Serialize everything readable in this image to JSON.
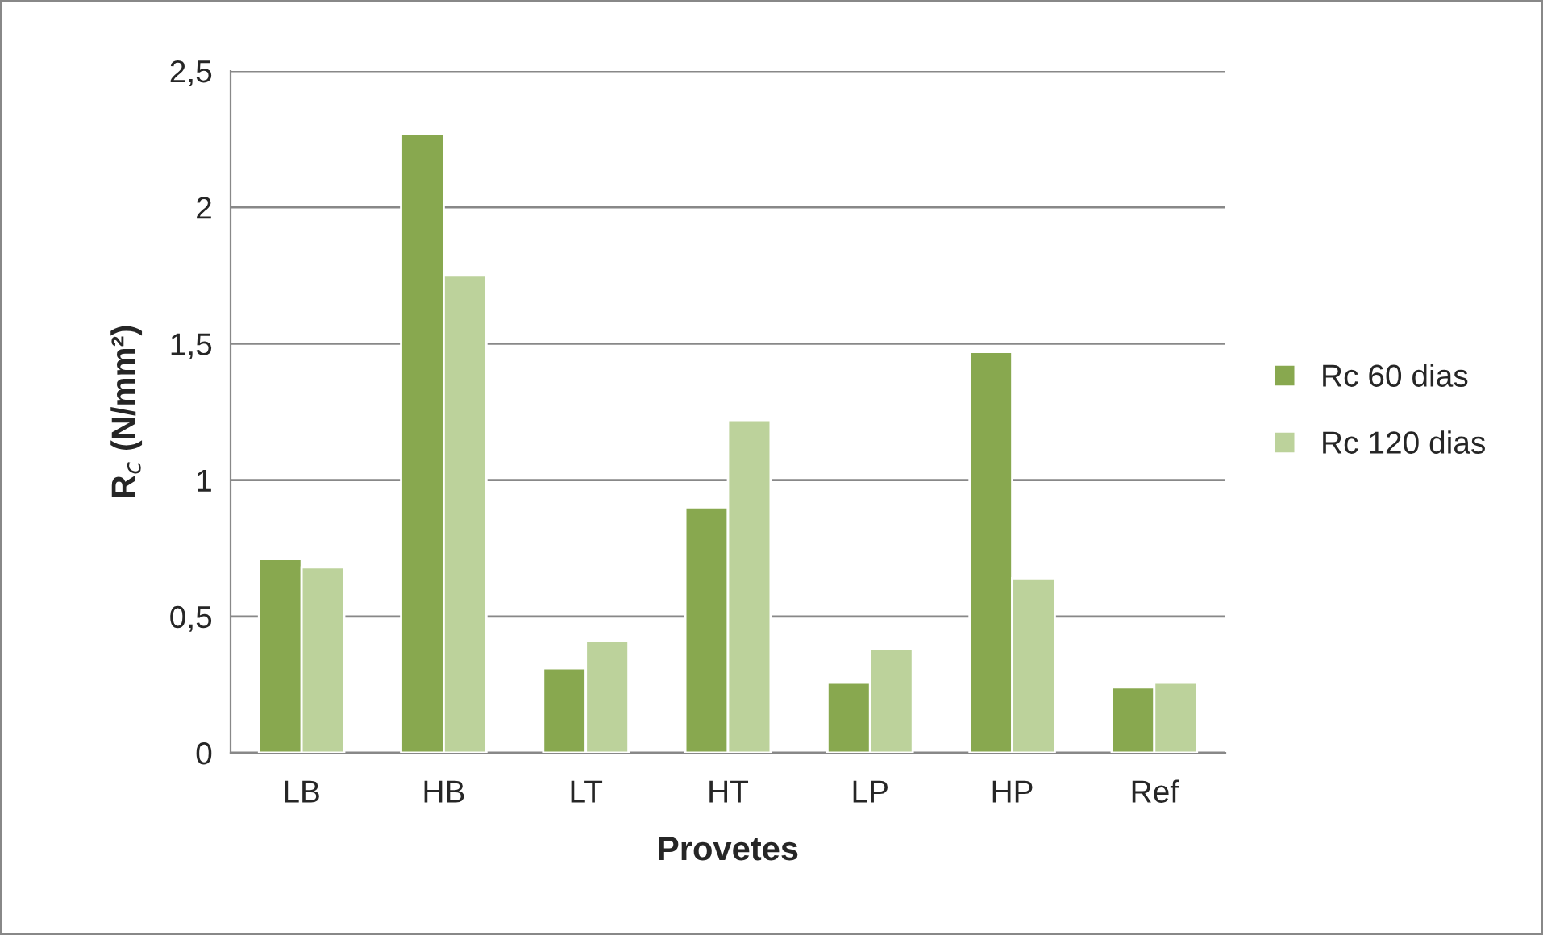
{
  "chart_data": {
    "type": "bar",
    "xlabel": "Provetes",
    "ylabel": "R$_{c}$ (N/mm²)",
    "categories": [
      "LB",
      "HB",
      "LT",
      "HT",
      "LP",
      "HP",
      "Ref"
    ],
    "series": [
      {
        "name": "Rc 60 dias",
        "color": "#88a84f",
        "values": [
          0.71,
          2.27,
          0.31,
          0.9,
          0.26,
          1.47,
          0.24
        ]
      },
      {
        "name": "Rc 120 dias",
        "color": "#bcd29b",
        "values": [
          0.68,
          1.75,
          0.41,
          1.22,
          0.38,
          0.64,
          0.26
        ]
      }
    ],
    "ylim": [
      0,
      2.5
    ],
    "yticks": [
      0,
      {
        "value": 0.5,
        "label": "0,5"
      },
      1,
      {
        "value": 1.5,
        "label": "1,5"
      },
      2,
      {
        "value": 2.5,
        "label": "2,5"
      }
    ],
    "grid": "y",
    "legend": "right"
  }
}
